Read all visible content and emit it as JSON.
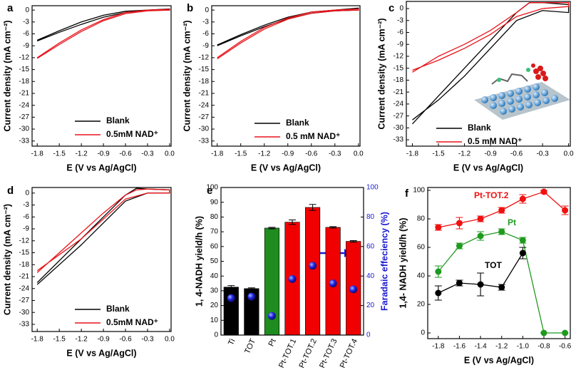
{
  "chart_data": [
    {
      "type": "line",
      "label": "a",
      "x_label": "E (V vs Ag/AgCl)",
      "y_label": "Current density (mA cm⁻²)",
      "xlim": [
        -1.87,
        0.02
      ],
      "xticks": [
        -1.8,
        -1.5,
        -1.2,
        -0.9,
        -0.6,
        -0.3,
        {
          "value": 0,
          "label": "0.0"
        }
      ],
      "ylim": [
        -34.3,
        1.1
      ],
      "yticks": [
        0,
        -3,
        -6,
        -9,
        -12,
        -15,
        -18,
        -21,
        -24,
        -27,
        -30,
        -33
      ],
      "legend": "lower right",
      "series": [
        {
          "name": "Blank",
          "color": "#000000",
          "x": [
            -1.8,
            -1.5,
            -1.2,
            -0.9,
            -0.6,
            -0.3,
            0,
            0,
            -0.3,
            -0.6,
            -0.9,
            -1.2,
            -1.5,
            -1.8
          ],
          "values": [
            -7.8,
            -5.6,
            -3.6,
            -1.8,
            -0.6,
            -0.1,
            0,
            0.3,
            0,
            -0.3,
            -1.3,
            -3.0,
            -5.2,
            -7.6
          ]
        },
        {
          "name": "0.5mM NAD⁺",
          "color": "#e8141b",
          "x": [
            -1.8,
            -1.5,
            -1.2,
            -0.9,
            -0.6,
            -0.3,
            0,
            0,
            -0.3,
            -0.6,
            -0.9,
            -1.2,
            -1.5,
            -1.8
          ],
          "values": [
            -12.2,
            -8.7,
            -5.4,
            -2.7,
            -0.9,
            -0.2,
            0,
            0.2,
            0,
            -0.6,
            -2.4,
            -5.0,
            -8.3,
            -12.0
          ]
        }
      ]
    },
    {
      "type": "line",
      "label": "b",
      "x_label": "E (V vs Ag/AgCl)",
      "y_label": "Current density (mA cm⁻²)",
      "xlim": [
        -1.87,
        0.02
      ],
      "xticks": [
        -1.8,
        -1.5,
        -1.2,
        -0.9,
        -0.6,
        -0.3,
        {
          "value": 0,
          "label": "0.0"
        }
      ],
      "ylim": [
        -34.3,
        1.1
      ],
      "yticks": [
        0,
        -3,
        -6,
        -9,
        -12,
        -15,
        -18,
        -21,
        -24,
        -27,
        -30,
        -33
      ],
      "legend": "lower right",
      "series": [
        {
          "name": "Blank",
          "color": "#000000",
          "x": [
            -1.8,
            -1.5,
            -1.2,
            -0.9,
            -0.6,
            -0.3,
            0,
            0,
            -0.3,
            -0.6,
            -0.9,
            -1.2,
            -1.5,
            -1.8
          ],
          "values": [
            -9,
            -6.5,
            -4.2,
            -2.2,
            -0.8,
            -0.2,
            0,
            0.5,
            0,
            -0.5,
            -1.8,
            -3.8,
            -6.2,
            -8.8
          ]
        },
        {
          "name": "0.5 mM NAD⁺",
          "color": "#e8141b",
          "x": [
            -1.8,
            -1.5,
            -1.2,
            -0.9,
            -0.6,
            -0.3,
            0,
            0,
            -0.3,
            -0.6,
            -0.9,
            -1.2,
            -1.5,
            -1.8
          ],
          "values": [
            -12.3,
            -8.3,
            -4.8,
            -2.3,
            -0.8,
            -0.2,
            0,
            0.3,
            0,
            -0.5,
            -2.0,
            -4.4,
            -7.9,
            -12.0
          ]
        }
      ]
    },
    {
      "type": "line",
      "label": "c",
      "x_label": "E (V vs Ag/AgCl)",
      "y_label": "Current density (mA cm⁻²)",
      "xlim": [
        -1.87,
        0.02
      ],
      "xticks": [
        -1.8,
        -1.5,
        -1.2,
        -0.9,
        -0.6,
        -0.3,
        {
          "value": 0,
          "label": "0.0"
        }
      ],
      "ylim": [
        -34.6,
        1.8
      ],
      "yticks": [
        0,
        -3,
        -6,
        -9,
        -12,
        -15,
        -18,
        -21,
        -24,
        -27,
        -30,
        -33
      ],
      "legend": "lower right",
      "series": [
        {
          "name": "Blank",
          "color": "#000000",
          "x": [
            -1.8,
            -1.5,
            -1.2,
            -0.9,
            -0.6,
            -0.45,
            -0.3,
            0,
            0,
            -0.3,
            -0.6,
            -0.9,
            -1.2,
            -1.5,
            -1.8
          ],
          "values": [
            -29,
            -22,
            -15,
            -8,
            -1,
            1.5,
            1.5,
            1,
            -1,
            -0.5,
            -3,
            -10,
            -17,
            -23,
            -28
          ]
        },
        {
          "name": "0.5 mM NAD⁺",
          "color": "#e8141b",
          "x": [
            -1.8,
            -1.5,
            -1.2,
            -0.9,
            -0.6,
            -0.45,
            -0.3,
            0,
            0,
            -0.3,
            -0.6,
            -0.9,
            -1.2,
            -1.5,
            -1.8
          ],
          "values": [
            -16,
            -12,
            -9,
            -5.5,
            -1,
            1.5,
            1.5,
            1.5,
            0.5,
            0,
            -2,
            -6.5,
            -10,
            -13,
            -15.5
          ]
        }
      ]
    },
    {
      "type": "line",
      "label": "d",
      "x_label": "E (V vs Ag/AgCl)",
      "y_label": "Current density (mA cm⁻²)",
      "xlim": [
        -1.87,
        0.02
      ],
      "xticks": [
        -1.8,
        -1.5,
        -1.2,
        -0.9,
        -0.6,
        -0.3,
        {
          "value": 0,
          "label": "0.0"
        }
      ],
      "ylim": [
        -34.8,
        1.4
      ],
      "yticks": [
        0,
        -3,
        -6,
        -9,
        -12,
        -15,
        -18,
        -21,
        -24,
        -27,
        -30,
        -33
      ],
      "legend": "lower right",
      "series": [
        {
          "name": "Blank",
          "color": "#000000",
          "x": [
            -1.8,
            -1.5,
            -1.2,
            -0.9,
            -0.6,
            -0.45,
            -0.3,
            0,
            0,
            -0.3,
            -0.6,
            -0.9,
            -1.2,
            -1.5,
            -1.8
          ],
          "values": [
            -22.5,
            -17,
            -11.5,
            -6,
            -0.5,
            1.2,
            1,
            0.8,
            0,
            0,
            -2,
            -7.5,
            -13,
            -18,
            -23
          ]
        },
        {
          "name": "0.5mM NAD⁺",
          "color": "#e8141b",
          "x": [
            -1.8,
            -1.5,
            -1.2,
            -0.9,
            -0.6,
            -0.45,
            -0.3,
            0,
            0,
            -0.3,
            -0.6,
            -0.9,
            -1.2,
            -1.5,
            -1.8
          ],
          "values": [
            -20,
            -15,
            -10,
            -5,
            -0.5,
            0.8,
            1,
            0.8,
            0,
            0,
            -1.5,
            -6.5,
            -11.5,
            -15.5,
            -19.5
          ]
        }
      ]
    },
    {
      "type": "bar",
      "label": "e",
      "y_label": "1, 4-NADH yield/h (%)",
      "y2_label": "Faradaic effeciency (%)",
      "categories": [
        "Ti",
        "TOT",
        "Pt",
        "Pt-TOT.1",
        "Pt-TOT.2",
        "Pt-TOT.3",
        "Pt-TOT.4"
      ],
      "values": [
        32.5,
        31.5,
        72.5,
        76.5,
        86.5,
        73,
        63.5
      ],
      "errors": [
        1,
        0.5,
        0.5,
        1.5,
        2,
        0.5,
        0.5
      ],
      "colors": [
        "#000000",
        "#000000",
        "#1f8c1f",
        "#f00000",
        "#f00000",
        "#f00000",
        "#f00000"
      ],
      "ylim": [
        0,
        100
      ],
      "yticks": [
        0,
        10,
        20,
        30,
        40,
        50,
        60,
        70,
        80,
        90,
        100
      ],
      "y2lim": [
        0,
        100
      ],
      "y2ticks": [
        0,
        20,
        40,
        60,
        80,
        100
      ],
      "series": [
        {
          "axis": "y2",
          "color": "#1a1ad0",
          "values": [
            25,
            26,
            13,
            38,
            47,
            35,
            31
          ]
        }
      ]
    },
    {
      "type": "errorbar",
      "label": "f",
      "x_label": "E (V vs Ag/AgCl)",
      "y_label": "1,4- NADH yield/h (%)",
      "x": [
        -1.8,
        -1.6,
        -1.4,
        -1.2,
        -1.0,
        -0.8,
        -0.6
      ],
      "xlim": [
        -1.9,
        -0.55
      ],
      "xticks": [
        -1.8,
        -1.6,
        -1.4,
        -1.2,
        {
          "value": -1.0,
          "label": "-1.0"
        },
        -0.8,
        -0.6
      ],
      "ylim": [
        -4,
        102
      ],
      "yticks": [
        0,
        20,
        40,
        60,
        80,
        100
      ],
      "series": [
        {
          "name": "Pt-TOT.2",
          "color": "#f01010",
          "values": [
            74,
            77,
            80,
            86,
            94,
            99,
            86
          ],
          "errors": [
            2,
            4,
            2,
            2,
            3,
            1,
            3
          ]
        },
        {
          "name": "Pt",
          "color": "#1f9a1f",
          "values": [
            43,
            61,
            68,
            71,
            65,
            0,
            0
          ],
          "errors": [
            4,
            2,
            3,
            2,
            2,
            0,
            0
          ]
        },
        {
          "name": "TOT",
          "color": "#000000",
          "values": [
            28,
            35,
            34,
            32,
            56,
            null,
            null
          ],
          "errors": [
            5,
            2,
            8,
            2,
            4,
            null,
            null
          ]
        }
      ]
    }
  ]
}
